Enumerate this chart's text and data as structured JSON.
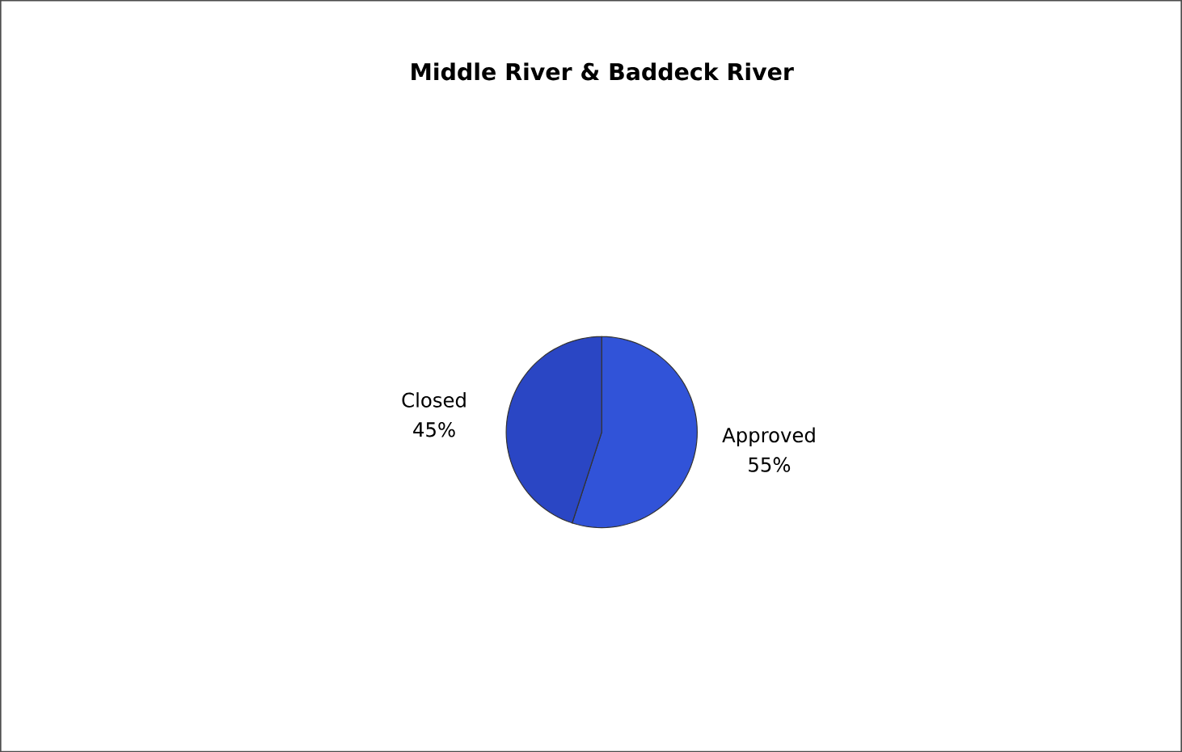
{
  "chart_data": {
    "type": "pie",
    "title": "Middle River & Baddeck River",
    "categories": [
      "Approved",
      "Closed"
    ],
    "values": [
      55,
      45
    ],
    "colors": [
      "#3153d8",
      "#2a46c4"
    ],
    "value_labels": [
      "55%",
      "45%"
    ]
  }
}
